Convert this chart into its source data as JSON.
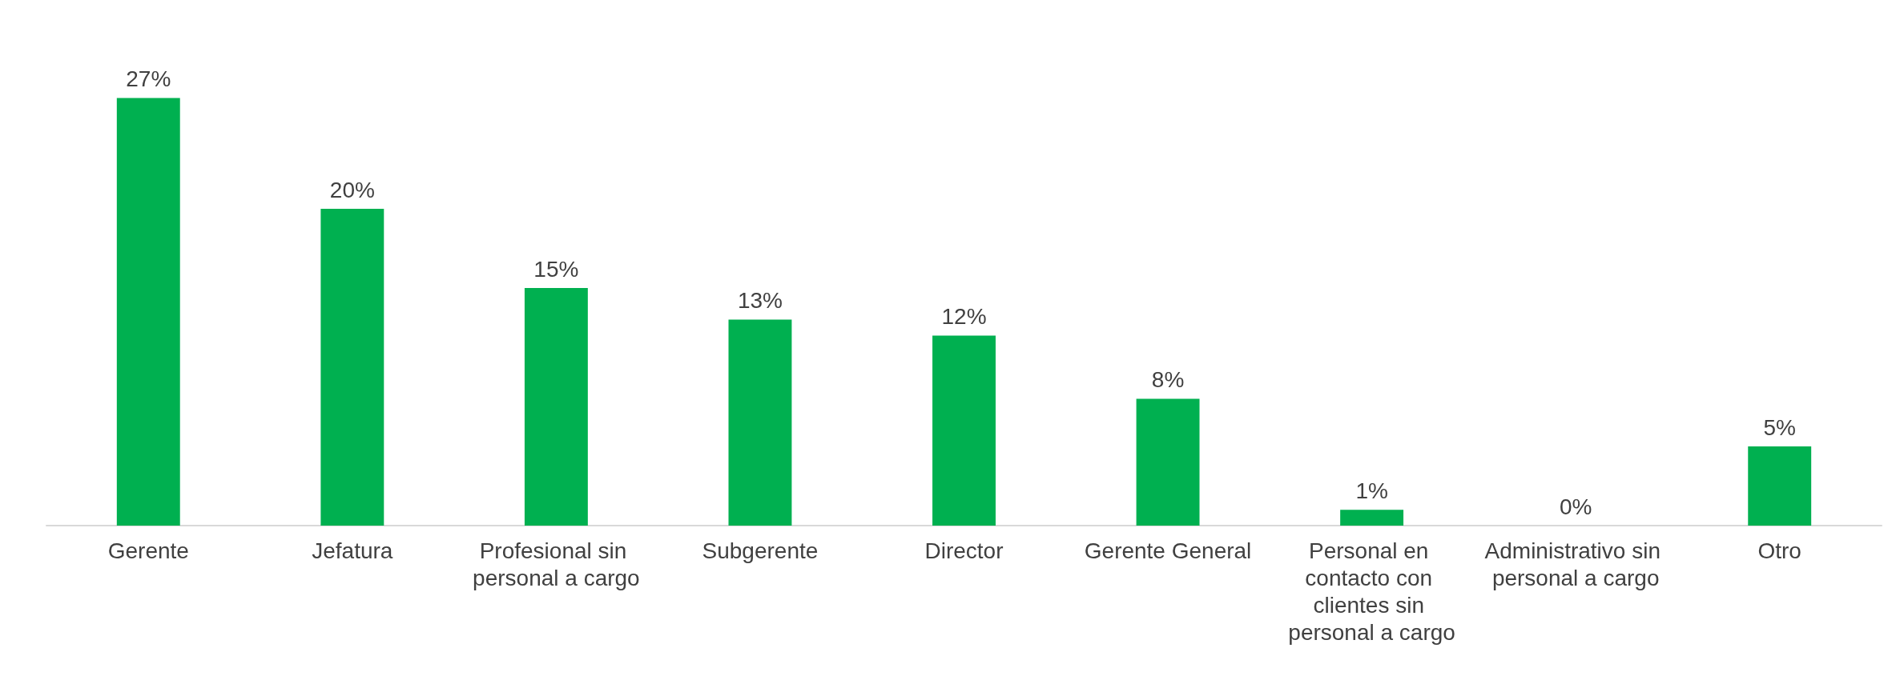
{
  "chart_data": {
    "type": "bar",
    "categories": [
      "Gerente",
      "Jefatura",
      "Profesional sin personal a cargo",
      "Subgerente",
      "Director",
      "Gerente General",
      "Personal en contacto con clientes sin personal a cargo",
      "Administrativo sin personal a cargo",
      "Otro"
    ],
    "values": [
      27,
      20,
      15,
      13,
      12,
      8,
      1,
      0,
      5
    ],
    "value_labels": [
      "27%",
      "20%",
      "15%",
      "13%",
      "12%",
      "8%",
      "1%",
      "0%",
      "5%"
    ],
    "color": "#00b050"
  }
}
